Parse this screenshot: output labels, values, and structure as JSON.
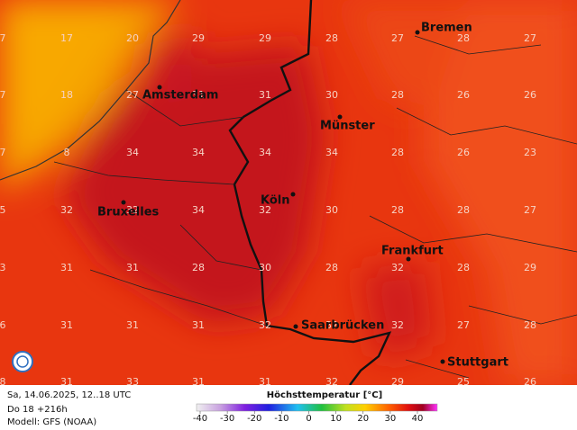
{
  "map": {
    "cities": [
      "Bremen",
      "Amsterdam",
      "Münster",
      "Köln",
      "Bruxelles",
      "Frankfurt",
      "Saarbrücken",
      "Stuttgart"
    ],
    "grid": [
      [
        "7",
        "17",
        "20",
        "29",
        "29",
        "28",
        "27",
        "28",
        "27"
      ],
      [
        "7",
        "18",
        "27",
        "31",
        "31",
        "30",
        "28",
        "26",
        "26"
      ],
      [
        "7",
        "8",
        "34",
        "34",
        "34",
        "34",
        "28",
        "26",
        "23"
      ],
      [
        "5",
        "32",
        "32",
        "34",
        "32",
        "30",
        "28",
        "28",
        "27"
      ],
      [
        "3",
        "31",
        "31",
        "28",
        "30",
        "28",
        "32",
        "28",
        "29"
      ],
      [
        "6",
        "31",
        "31",
        "31",
        "32",
        "32",
        "32",
        "27",
        "28"
      ],
      [
        "8",
        "31",
        "33",
        "31",
        "31",
        "32",
        "29",
        "25",
        "26"
      ]
    ]
  },
  "footer": {
    "date": "Sa, 14.06.2025, 12..18 UTC",
    "run": "Do 18 +216h",
    "model": "Modell: GFS (NOAA)"
  },
  "legend": {
    "title": "Höchsttemperatur [°C]",
    "ticks": [
      -40,
      -30,
      -20,
      -10,
      0,
      10,
      20,
      30,
      40
    ],
    "range": [
      -40,
      40
    ]
  }
}
